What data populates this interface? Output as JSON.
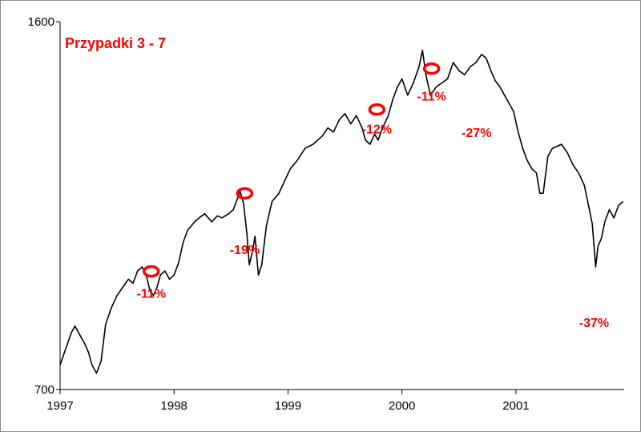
{
  "chart_data": {
    "type": "line",
    "title": "Przypadki 3 - 7",
    "title_color": "#ff0000",
    "line_color": "#000000",
    "annotation_color": "#ff0000",
    "xlabel": "",
    "ylabel": "",
    "ylim": [
      700,
      1600
    ],
    "yticks": [
      {
        "value": 700,
        "label": "700"
      },
      {
        "value": 1600,
        "label": "1600"
      }
    ],
    "xlim": [
      1997.0,
      2001.95
    ],
    "xticks": [
      {
        "value": 1997,
        "label": "1997"
      },
      {
        "value": 1998,
        "label": "1998"
      },
      {
        "value": 1999,
        "label": "1999"
      },
      {
        "value": 2000,
        "label": "2000"
      },
      {
        "value": 2001,
        "label": "2001"
      }
    ],
    "grid": false,
    "series": [
      {
        "x": [
          1997.0,
          1997.05,
          1997.1,
          1997.13,
          1997.18,
          1997.22,
          1997.25,
          1997.28,
          1997.32,
          1997.36,
          1997.4,
          1997.45,
          1997.5,
          1997.55,
          1997.6,
          1997.64,
          1997.68,
          1997.72,
          1997.76,
          1997.79,
          1997.82,
          1997.85,
          1997.88,
          1997.92,
          1997.96,
          1998.0,
          1998.04,
          1998.08,
          1998.12,
          1998.18,
          1998.22,
          1998.27,
          1998.33,
          1998.38,
          1998.42,
          1998.48,
          1998.52,
          1998.56,
          1998.58,
          1998.61,
          1998.64,
          1998.66,
          1998.69,
          1998.71,
          1998.74,
          1998.77,
          1998.81,
          1998.86,
          1998.92,
          1998.97,
          1999.02,
          1999.08,
          1999.15,
          1999.22,
          1999.3,
          1999.35,
          1999.4,
          1999.45,
          1999.5,
          1999.55,
          1999.6,
          1999.65,
          1999.68,
          1999.72,
          1999.76,
          1999.79,
          1999.83,
          1999.88,
          1999.92,
          1999.96,
          2000.0,
          2000.05,
          2000.1,
          2000.15,
          2000.18,
          2000.21,
          2000.25,
          2000.3,
          2000.35,
          2000.4,
          2000.45,
          2000.5,
          2000.55,
          2000.6,
          2000.65,
          2000.7,
          2000.74,
          2000.78,
          2000.82,
          2000.86,
          2000.9,
          2000.94,
          2000.98,
          2001.02,
          2001.06,
          2001.1,
          2001.14,
          2001.18,
          2001.21,
          2001.24,
          2001.28,
          2001.32,
          2001.36,
          2001.4,
          2001.45,
          2001.5,
          2001.55,
          2001.6,
          2001.63,
          2001.67,
          2001.7,
          2001.72,
          2001.75,
          2001.78,
          2001.82,
          2001.86,
          2001.9,
          2001.94
        ],
        "y": [
          760,
          800,
          840,
          855,
          830,
          810,
          790,
          760,
          740,
          770,
          860,
          900,
          930,
          950,
          970,
          960,
          990,
          1000,
          975,
          940,
          930,
          950,
          980,
          990,
          970,
          980,
          1010,
          1060,
          1090,
          1110,
          1120,
          1130,
          1110,
          1125,
          1120,
          1130,
          1140,
          1170,
          1185,
          1155,
          1080,
          1005,
          1040,
          1075,
          980,
          1005,
          1100,
          1160,
          1180,
          1210,
          1240,
          1260,
          1290,
          1300,
          1320,
          1340,
          1330,
          1360,
          1375,
          1350,
          1370,
          1340,
          1310,
          1300,
          1325,
          1310,
          1340,
          1370,
          1410,
          1440,
          1460,
          1420,
          1450,
          1490,
          1530,
          1470,
          1420,
          1440,
          1450,
          1460,
          1500,
          1480,
          1470,
          1490,
          1500,
          1520,
          1510,
          1480,
          1455,
          1440,
          1420,
          1400,
          1380,
          1330,
          1290,
          1260,
          1240,
          1230,
          1180,
          1180,
          1270,
          1290,
          1295,
          1300,
          1280,
          1250,
          1230,
          1200,
          1160,
          1105,
          1000,
          1050,
          1070,
          1110,
          1140,
          1120,
          1150,
          1160
        ]
      }
    ],
    "annotations": [
      {
        "x": 1997.8,
        "y": 989,
        "label": "-11%"
      },
      {
        "x": 1998.62,
        "y": 1180,
        "label": "-19%"
      },
      {
        "x": 1999.78,
        "y": 1385,
        "label": "-12%"
      },
      {
        "x": 2000.26,
        "y": 1485,
        "label": "-11%"
      },
      {
        "x": 2000.76,
        "y": 1465,
        "label": "-27%"
      },
      {
        "x": 2001.7,
        "y": 990,
        "label": "-37%"
      }
    ]
  }
}
